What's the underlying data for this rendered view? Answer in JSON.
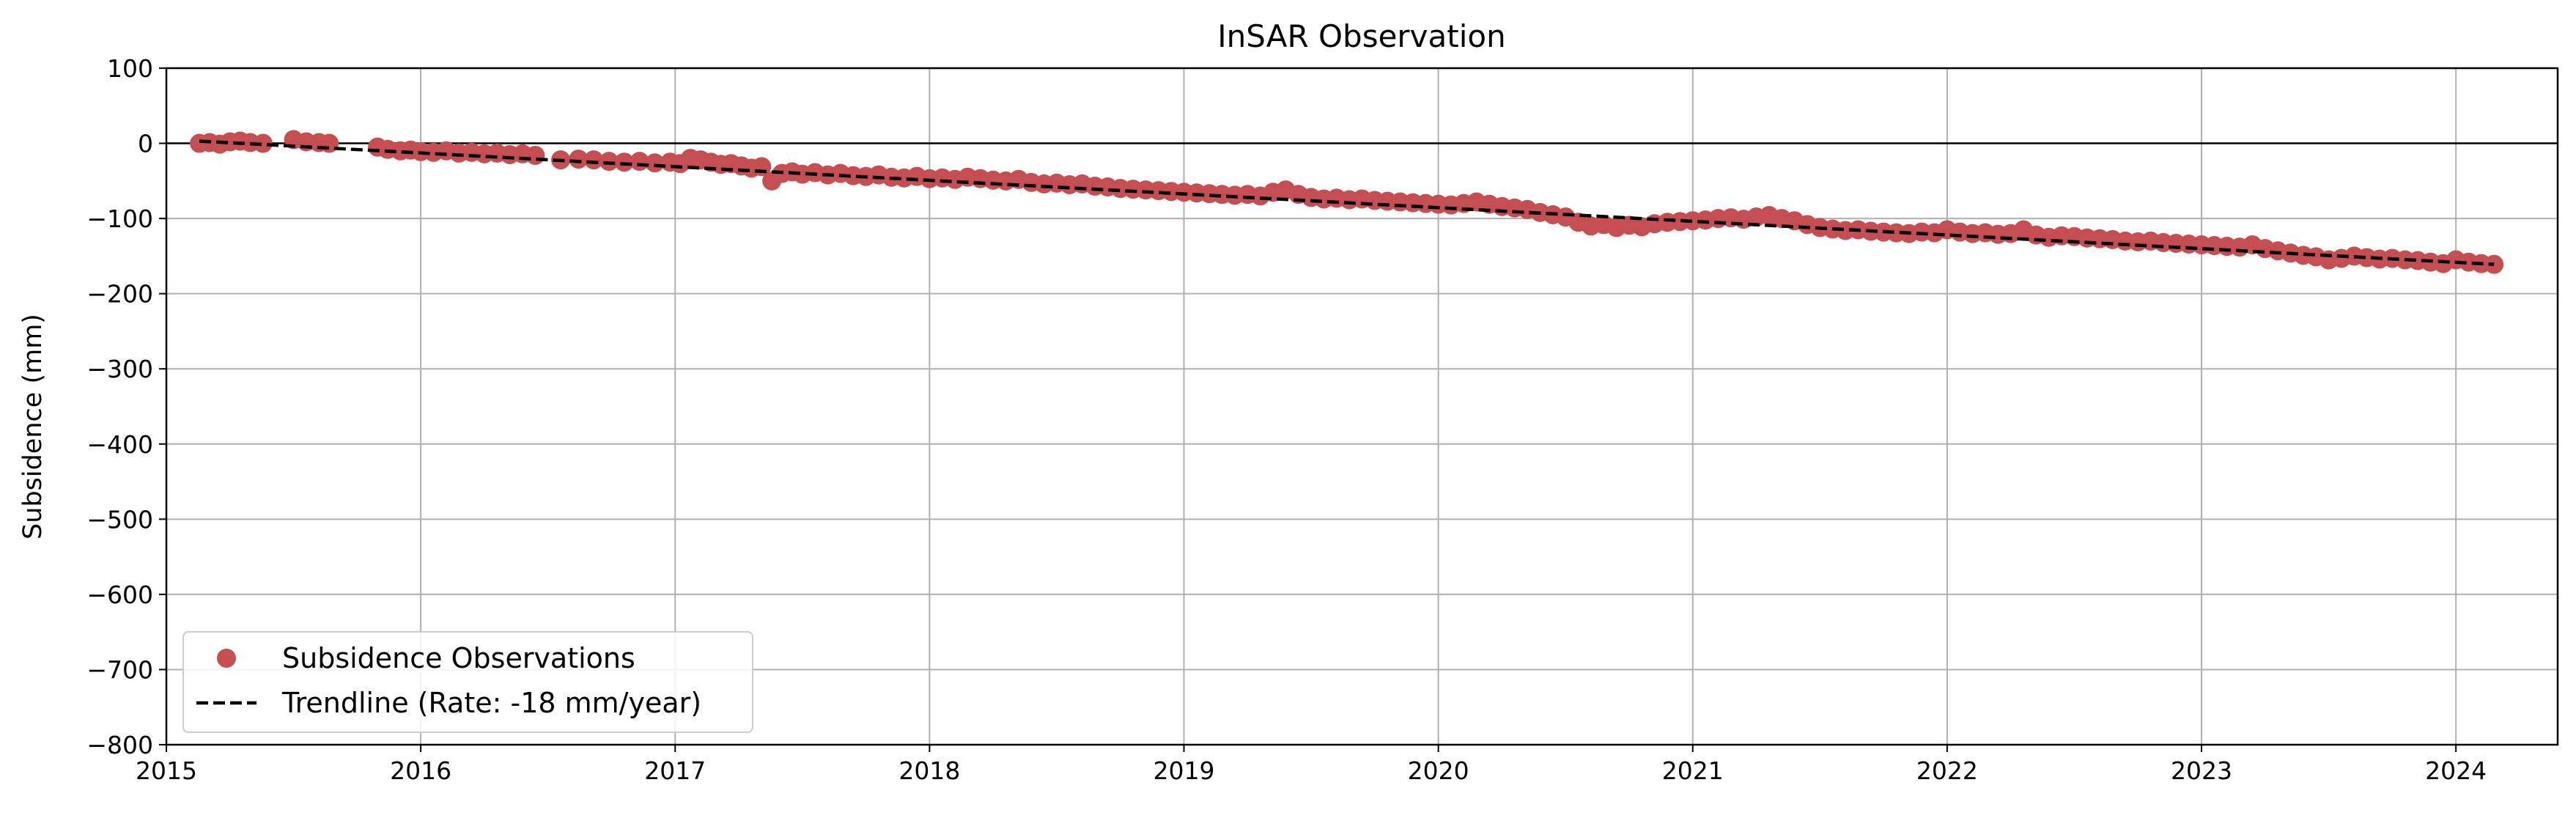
{
  "chart_data": {
    "type": "scatter",
    "title": "InSAR Observation",
    "xlabel": "",
    "ylabel": "Subsidence (mm)",
    "xlim": [
      2015.0,
      2024.4
    ],
    "ylim": [
      -800,
      100
    ],
    "x_ticks": [
      2015,
      2016,
      2017,
      2018,
      2019,
      2020,
      2021,
      2022,
      2023,
      2024
    ],
    "y_ticks": [
      100,
      0,
      -100,
      -200,
      -300,
      -400,
      -500,
      -600,
      -700,
      -800
    ],
    "y_tick_labels": [
      "100",
      "0",
      "−100",
      "−200",
      "−300",
      "−400",
      "−500",
      "−600",
      "−700",
      "−800"
    ],
    "grid": true,
    "zero_line": true,
    "legend": {
      "placement": "lower-left",
      "entries": [
        "Subsidence Observations",
        "Trendline (Rate: -18 mm/year)"
      ]
    },
    "colors": {
      "observations": "#c44e52",
      "trendline": "#000000",
      "grid": "#b0b0b0"
    },
    "series": [
      {
        "name": "Subsidence Observations",
        "kind": "scatter",
        "points": [
          [
            2015.13,
            0
          ],
          [
            2015.17,
            1
          ],
          [
            2015.21,
            -1
          ],
          [
            2015.25,
            2
          ],
          [
            2015.29,
            3
          ],
          [
            2015.33,
            1
          ],
          [
            2015.38,
            0
          ],
          [
            2015.5,
            5
          ],
          [
            2015.55,
            2
          ],
          [
            2015.6,
            1
          ],
          [
            2015.64,
            0
          ],
          [
            2015.83,
            -5
          ],
          [
            2015.87,
            -8
          ],
          [
            2015.92,
            -10
          ],
          [
            2015.96,
            -9
          ],
          [
            2016.0,
            -11
          ],
          [
            2016.05,
            -12
          ],
          [
            2016.1,
            -10
          ],
          [
            2016.15,
            -13
          ],
          [
            2016.2,
            -12
          ],
          [
            2016.25,
            -14
          ],
          [
            2016.3,
            -13
          ],
          [
            2016.35,
            -15
          ],
          [
            2016.4,
            -14
          ],
          [
            2016.45,
            -16
          ],
          [
            2016.55,
            -22
          ],
          [
            2016.62,
            -21
          ],
          [
            2016.68,
            -22
          ],
          [
            2016.74,
            -24
          ],
          [
            2016.8,
            -25
          ],
          [
            2016.86,
            -24
          ],
          [
            2016.92,
            -26
          ],
          [
            2016.98,
            -25
          ],
          [
            2017.02,
            -27
          ],
          [
            2017.06,
            -20
          ],
          [
            2017.1,
            -22
          ],
          [
            2017.14,
            -25
          ],
          [
            2017.18,
            -28
          ],
          [
            2017.22,
            -27
          ],
          [
            2017.26,
            -30
          ],
          [
            2017.3,
            -33
          ],
          [
            2017.34,
            -31
          ],
          [
            2017.38,
            -50
          ],
          [
            2017.42,
            -40
          ],
          [
            2017.46,
            -38
          ],
          [
            2017.5,
            -41
          ],
          [
            2017.55,
            -39
          ],
          [
            2017.6,
            -42
          ],
          [
            2017.65,
            -40
          ],
          [
            2017.7,
            -43
          ],
          [
            2017.75,
            -44
          ],
          [
            2017.8,
            -42
          ],
          [
            2017.85,
            -45
          ],
          [
            2017.9,
            -46
          ],
          [
            2017.95,
            -44
          ],
          [
            2018.0,
            -47
          ],
          [
            2018.05,
            -46
          ],
          [
            2018.1,
            -48
          ],
          [
            2018.15,
            -45
          ],
          [
            2018.2,
            -47
          ],
          [
            2018.25,
            -49
          ],
          [
            2018.3,
            -50
          ],
          [
            2018.35,
            -48
          ],
          [
            2018.4,
            -52
          ],
          [
            2018.45,
            -54
          ],
          [
            2018.5,
            -53
          ],
          [
            2018.55,
            -55
          ],
          [
            2018.6,
            -54
          ],
          [
            2018.65,
            -57
          ],
          [
            2018.7,
            -58
          ],
          [
            2018.75,
            -60
          ],
          [
            2018.8,
            -61
          ],
          [
            2018.85,
            -62
          ],
          [
            2018.9,
            -63
          ],
          [
            2018.95,
            -64
          ],
          [
            2019.0,
            -65
          ],
          [
            2019.05,
            -66
          ],
          [
            2019.1,
            -67
          ],
          [
            2019.15,
            -68
          ],
          [
            2019.2,
            -69
          ],
          [
            2019.25,
            -68
          ],
          [
            2019.3,
            -70
          ],
          [
            2019.35,
            -65
          ],
          [
            2019.4,
            -62
          ],
          [
            2019.45,
            -68
          ],
          [
            2019.5,
            -72
          ],
          [
            2019.55,
            -74
          ],
          [
            2019.6,
            -73
          ],
          [
            2019.65,
            -75
          ],
          [
            2019.7,
            -74
          ],
          [
            2019.75,
            -76
          ],
          [
            2019.8,
            -77
          ],
          [
            2019.85,
            -78
          ],
          [
            2019.9,
            -79
          ],
          [
            2019.95,
            -80
          ],
          [
            2020.0,
            -81
          ],
          [
            2020.05,
            -82
          ],
          [
            2020.1,
            -80
          ],
          [
            2020.15,
            -78
          ],
          [
            2020.2,
            -81
          ],
          [
            2020.25,
            -84
          ],
          [
            2020.3,
            -86
          ],
          [
            2020.35,
            -88
          ],
          [
            2020.4,
            -92
          ],
          [
            2020.45,
            -95
          ],
          [
            2020.5,
            -98
          ],
          [
            2020.55,
            -105
          ],
          [
            2020.6,
            -110
          ],
          [
            2020.65,
            -108
          ],
          [
            2020.7,
            -112
          ],
          [
            2020.75,
            -109
          ],
          [
            2020.8,
            -111
          ],
          [
            2020.85,
            -107
          ],
          [
            2020.9,
            -105
          ],
          [
            2020.95,
            -104
          ],
          [
            2021.0,
            -103
          ],
          [
            2021.05,
            -102
          ],
          [
            2021.1,
            -100
          ],
          [
            2021.15,
            -99
          ],
          [
            2021.2,
            -101
          ],
          [
            2021.25,
            -98
          ],
          [
            2021.3,
            -96
          ],
          [
            2021.35,
            -100
          ],
          [
            2021.4,
            -103
          ],
          [
            2021.45,
            -108
          ],
          [
            2021.5,
            -112
          ],
          [
            2021.55,
            -114
          ],
          [
            2021.6,
            -116
          ],
          [
            2021.65,
            -115
          ],
          [
            2021.7,
            -117
          ],
          [
            2021.75,
            -118
          ],
          [
            2021.8,
            -119
          ],
          [
            2021.85,
            -120
          ],
          [
            2021.9,
            -118
          ],
          [
            2021.95,
            -119
          ],
          [
            2022.0,
            -115
          ],
          [
            2022.05,
            -118
          ],
          [
            2022.1,
            -120
          ],
          [
            2022.15,
            -119
          ],
          [
            2022.2,
            -121
          ],
          [
            2022.25,
            -120
          ],
          [
            2022.3,
            -115
          ],
          [
            2022.35,
            -122
          ],
          [
            2022.4,
            -125
          ],
          [
            2022.45,
            -123
          ],
          [
            2022.5,
            -124
          ],
          [
            2022.55,
            -126
          ],
          [
            2022.6,
            -127
          ],
          [
            2022.65,
            -128
          ],
          [
            2022.7,
            -130
          ],
          [
            2022.75,
            -131
          ],
          [
            2022.8,
            -130
          ],
          [
            2022.85,
            -132
          ],
          [
            2022.9,
            -133
          ],
          [
            2022.95,
            -134
          ],
          [
            2023.0,
            -135
          ],
          [
            2023.05,
            -136
          ],
          [
            2023.1,
            -137
          ],
          [
            2023.15,
            -138
          ],
          [
            2023.2,
            -135
          ],
          [
            2023.25,
            -140
          ],
          [
            2023.3,
            -143
          ],
          [
            2023.35,
            -146
          ],
          [
            2023.4,
            -149
          ],
          [
            2023.45,
            -151
          ],
          [
            2023.5,
            -155
          ],
          [
            2023.55,
            -153
          ],
          [
            2023.6,
            -150
          ],
          [
            2023.65,
            -152
          ],
          [
            2023.7,
            -154
          ],
          [
            2023.75,
            -153
          ],
          [
            2023.8,
            -155
          ],
          [
            2023.85,
            -156
          ],
          [
            2023.9,
            -158
          ],
          [
            2023.95,
            -160
          ],
          [
            2024.0,
            -155
          ],
          [
            2024.05,
            -158
          ],
          [
            2024.1,
            -160
          ],
          [
            2024.15,
            -161
          ]
        ]
      },
      {
        "name": "Trendline (Rate: -18 mm/year)",
        "kind": "line",
        "style": "dashed",
        "points": [
          [
            2015.13,
            3
          ],
          [
            2024.15,
            -161
          ]
        ]
      }
    ]
  }
}
